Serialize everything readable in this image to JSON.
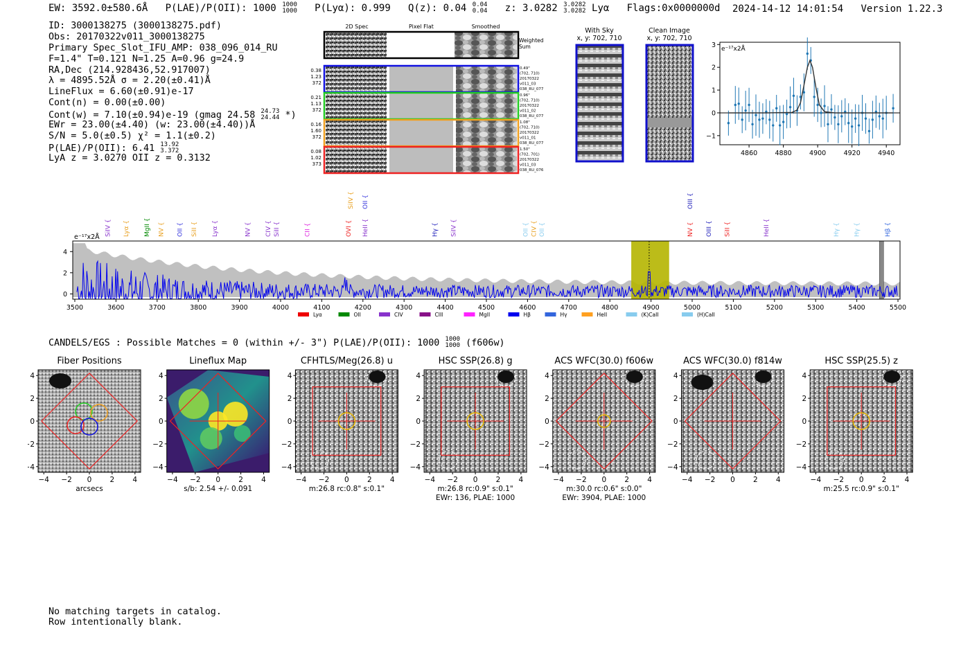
{
  "header": {
    "ew": "EW: 3592.0±580.6Å",
    "plae_label": "P(LAE)/P(OII): 1000",
    "plae_hi": "1000",
    "plae_lo": "1000",
    "plya": "P(Lyα): 0.999",
    "qz_label": "Q(z): 0.04",
    "qz_hi": "0.04",
    "qz_lo": "0.04",
    "z_label": "z: 3.0282",
    "z_hi": "3.0282",
    "z_lo": "3.0282",
    "line": "Lyα",
    "flags": "Flags:0x0000000d",
    "timestamp": "2024-14-12 14:01:54",
    "version": "Version 1.22.3"
  },
  "info": {
    "id": "ID: 3000138275 (3000138275.pdf)",
    "obs": "Obs: 20170322v011_3000138275",
    "primary": "Primary Spec_Slot_IFU_AMP: 038_096_014_RU",
    "params": "F=1.4\"  T=0.121  N=1.25  A=0.96  g=24.9",
    "radec": "RA,Dec (214.928436,52.917007)",
    "lambda": "λ = 4895.52Å   σ = 2.20(±0.41)Å",
    "lineflux": "LineFlux = 6.60(±0.91)e-17",
    "contn": "Cont(n) = 0.00(±0.00)",
    "contw_a": "Cont(w) = 7.10(±0.94)e-19 (gmag 24.58",
    "contw_hi": "24.73",
    "contw_lo": "24.44",
    "contw_b": " *)",
    "ewr": "EWr = 23.00(±4.40) (w: 23.00(±4.40))Å",
    "sn": "S/N = 5.0(±0.5)  χ² = 1.1(±0.2)",
    "plae_a": "P(LAE)/P(OII): 6.41",
    "plae_hi": "13.92",
    "plae_lo": "3.372",
    "lyaz": "LyA z = 3.0270  OII z = 0.3132"
  },
  "cutouts": {
    "col_titles": [
      "2D Spec",
      "Pixel Flat",
      "Smoothed"
    ],
    "weighted": [
      "Weighted",
      "Sum"
    ],
    "rows": [
      {
        "vals": [
          "0.38",
          "1.23",
          "372"
        ],
        "meta": [
          "0.49\"",
          "(702, 710)",
          "20170322",
          "v011_03",
          "038_RU_077"
        ],
        "color": "#1010e0"
      },
      {
        "vals": [
          "0.21",
          "1.13",
          "372"
        ],
        "meta": [
          "0.96\"",
          "(702, 710)",
          "20170322",
          "v011_02",
          "038_RU_077"
        ],
        "color": "#22cc22"
      },
      {
        "vals": [
          "0.16",
          "1.60",
          "372"
        ],
        "meta": [
          "1.08\"",
          "(702, 710)",
          "20170322",
          "v011_01",
          "038_RU_077"
        ],
        "color": "#f0a020"
      },
      {
        "vals": [
          "0.08",
          "1.02",
          "373"
        ],
        "meta": [
          "1.50\"",
          "(702, 701)",
          "20170322",
          "v011_03",
          "038_RU_076"
        ],
        "color": "#ee2222"
      }
    ]
  },
  "sky": {
    "with_sky": "With Sky",
    "with_sky_xy": "x, y: 702, 710",
    "clean": "Clean Image",
    "clean_xy": "x, y: 702, 710"
  },
  "line_fit": {
    "unit": "e⁻¹⁷x2Å",
    "xticks": [
      "4860",
      "4880",
      "4900",
      "4920",
      "4940"
    ],
    "yticks": [
      "3",
      "2",
      "1",
      "0",
      "−1"
    ]
  },
  "chart_data": [
    {
      "type": "line",
      "title": "",
      "ylabel": "e⁻¹⁷x2Å",
      "xlim": [
        4843,
        4948
      ],
      "ylim": [
        -1.4,
        3.1
      ],
      "series": [
        {
          "name": "data",
          "x": [
            4848,
            4852,
            4854,
            4856,
            4858,
            4860,
            4862,
            4864,
            4866,
            4868,
            4870,
            4872,
            4874,
            4876,
            4878,
            4880,
            4882,
            4884,
            4886,
            4888,
            4890,
            4892,
            4894,
            4896,
            4898,
            4900,
            4902,
            4904,
            4906,
            4908,
            4910,
            4912,
            4914,
            4916,
            4918,
            4920,
            4922,
            4924,
            4926,
            4928,
            4930,
            4932,
            4934,
            4936,
            4938,
            4940,
            4944
          ],
          "y": [
            -0.45,
            0.35,
            0.4,
            -0.3,
            0.1,
            0.35,
            -0.5,
            -0.1,
            -0.3,
            -0.25,
            0.05,
            -0.3,
            -0.55,
            0.2,
            -0.55,
            -0.4,
            -0.05,
            0.25,
            0.75,
            0.1,
            0.7,
            0.9,
            2.6,
            2.3,
            0.7,
            0.35,
            0.0,
            0.3,
            -0.5,
            0.15,
            -0.2,
            -0.5,
            -0.15,
            0.05,
            -0.45,
            -0.6,
            -0.25,
            -0.55,
            0.0,
            -0.25,
            -0.8,
            -0.3,
            0.05,
            -0.15,
            -0.25,
            0.0,
            0.2
          ]
        },
        {
          "name": "fit",
          "x": [
            4848,
            4870,
            4885,
            4888,
            4890,
            4892,
            4894,
            4895.5,
            4897,
            4899,
            4901,
            4904,
            4910,
            4944
          ],
          "y": [
            0.0,
            0.0,
            0.02,
            0.12,
            0.45,
            1.2,
            2.0,
            2.3,
            2.0,
            1.1,
            0.35,
            0.05,
            0.0,
            0.0
          ]
        }
      ]
    },
    {
      "type": "line",
      "title": "",
      "ylabel": "e⁻¹⁷x2Å",
      "xlim": [
        3495,
        5505
      ],
      "ylim": [
        -0.5,
        5.0
      ],
      "xticks": [
        3500,
        3600,
        3700,
        3800,
        3900,
        4000,
        4100,
        4200,
        4300,
        4400,
        4500,
        4600,
        4700,
        4800,
        4900,
        5000,
        5100,
        5200,
        5300,
        5400,
        5500
      ],
      "yticks": [
        0,
        2,
        4
      ],
      "highlight_range": [
        4852,
        4944
      ],
      "marker_x": 4895.5,
      "series": [
        {
          "name": "flux",
          "color": "#0000ee"
        },
        {
          "name": "error",
          "color": "#bbbbbb"
        }
      ],
      "line_labels": [
        {
          "label": "SiIV",
          "x": 3580,
          "color": "#8833cc",
          "tier": 1
        },
        {
          "label": "Lyα",
          "x": 3625,
          "color": "#e8a020",
          "tier": 1
        },
        {
          "label": "MgII",
          "x": 3675,
          "color": "#008800",
          "tier": 1
        },
        {
          "label": "NV",
          "x": 3710,
          "color": "#e8a020",
          "tier": 1
        },
        {
          "label": "OII",
          "x": 3755,
          "color": "#3333dd",
          "tier": 1
        },
        {
          "label": "SiII",
          "x": 3790,
          "color": "#e8a020",
          "tier": 1
        },
        {
          "label": "Lyα",
          "x": 3840,
          "color": "#8833cc",
          "tier": 1
        },
        {
          "label": "NV",
          "x": 3920,
          "color": "#8833cc",
          "tier": 1
        },
        {
          "label": "CIV",
          "x": 3970,
          "color": "#8833cc",
          "tier": 1
        },
        {
          "label": "SiII",
          "x": 3990,
          "color": "#8833cc",
          "tier": 1
        },
        {
          "label": "CII",
          "x": 4065,
          "color": "#dd22dd",
          "tier": 1
        },
        {
          "label": "OVI",
          "x": 4165,
          "color": "#ee2222",
          "tier": 1
        },
        {
          "label": "SiIV",
          "x": 4170,
          "color": "#e8a020",
          "tier": 2
        },
        {
          "label": "OII",
          "x": 4205,
          "color": "#3333dd",
          "tier": 2
        },
        {
          "label": "HeII",
          "x": 4205,
          "color": "#8833cc",
          "tier": 1
        },
        {
          "label": "Hγ",
          "x": 4375,
          "color": "#2222bb",
          "tier": 1
        },
        {
          "label": "SiIV",
          "x": 4420,
          "color": "#8833cc",
          "tier": 1
        },
        {
          "label": "OII",
          "x": 4595,
          "color": "#88ccee",
          "tier": 1
        },
        {
          "label": "CIV",
          "x": 4615,
          "color": "#e8a020",
          "tier": 1
        },
        {
          "label": "OII",
          "x": 4635,
          "color": "#88ccee",
          "tier": 1
        },
        {
          "label": "NV",
          "x": 4995,
          "color": "#ee2222",
          "tier": 1
        },
        {
          "label": "OIII",
          "x": 4995,
          "color": "#2222bb",
          "tier": 2
        },
        {
          "label": "OIII",
          "x": 5040,
          "color": "#2222bb",
          "tier": 1
        },
        {
          "label": "SiII",
          "x": 5085,
          "color": "#ee2222",
          "tier": 1
        },
        {
          "label": "HeII",
          "x": 5180,
          "color": "#8833cc",
          "tier": 1
        },
        {
          "label": "Hγ",
          "x": 5350,
          "color": "#88ccee",
          "tier": 1
        },
        {
          "label": "Hγ",
          "x": 5400,
          "color": "#88ccee",
          "tier": 1
        },
        {
          "label": "Hβ",
          "x": 5475,
          "color": "#3366dd",
          "tier": 1
        }
      ],
      "legend": [
        {
          "label": "Lyα",
          "color": "#ee0000"
        },
        {
          "label": "OII",
          "color": "#008800"
        },
        {
          "label": "CIV",
          "color": "#8833cc"
        },
        {
          "label": "CIII",
          "color": "#881188"
        },
        {
          "label": "MgII",
          "color": "#ff22ff"
        },
        {
          "label": "Hβ",
          "color": "#0000ee"
        },
        {
          "label": "Hγ",
          "color": "#3366dd"
        },
        {
          "label": "HeII",
          "color": "#ffa020"
        },
        {
          "label": "(K)CaII",
          "color": "#88ccee"
        },
        {
          "label": "(H)CaII",
          "color": "#88ccee"
        }
      ]
    }
  ],
  "candels": {
    "text_a": "CANDELS/EGS : Possible Matches = 0 (within +/- 3\")  P(LAE)/P(OII): 1000",
    "hi": "1000",
    "lo": "1000",
    "text_b": " (f606w)"
  },
  "panels": [
    {
      "title": "Fiber Positions",
      "cap1": "arcsecs",
      "cap2": "",
      "kind": "fibers"
    },
    {
      "title": "Lineflux Map",
      "cap1": "s/b: 2.54 +/- 0.091",
      "cap2": "",
      "kind": "lineflux"
    },
    {
      "title": "CFHTLS/Meg(26.8) u",
      "cap1": "m:26.8 rc:0.8\"  s:0.1\"",
      "cap2": "",
      "kind": "square"
    },
    {
      "title": "HSC SSP(26.8) g",
      "cap1": "m:26.8 rc:0.9\"  s:0.1\"",
      "cap2": "EWr: 136, PLAE: 1000",
      "kind": "square"
    },
    {
      "title": "ACS WFC(30.0) f606w",
      "cap1": "m:30.0 rc:0.6\"  s:0.0\"",
      "cap2": "EWr: 3904, PLAE: 1000",
      "kind": "diamond"
    },
    {
      "title": "ACS WFC(30.0) f814w",
      "cap1": "",
      "cap2": "",
      "kind": "diamond2"
    },
    {
      "title": "HSC SSP(25.5) z",
      "cap1": "m:25.5 rc:0.9\"  s:0.1\"",
      "cap2": "",
      "kind": "square"
    }
  ],
  "panel_ticks": {
    "x": [
      "−4",
      "−2",
      "0",
      "2",
      "4"
    ],
    "y": [
      "4",
      "2",
      "0",
      "−2",
      "−4"
    ]
  },
  "footer": {
    "line1": "No matching targets in catalog.",
    "line2": "Row intentionally blank."
  }
}
